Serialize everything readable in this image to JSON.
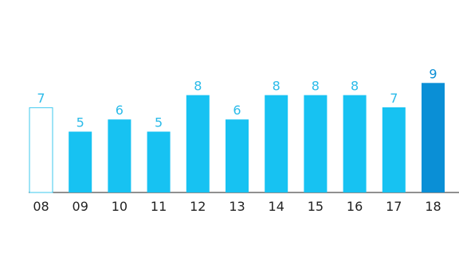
{
  "chart_data": {
    "type": "bar",
    "categories": [
      "08",
      "09",
      "10",
      "11",
      "12",
      "13",
      "14",
      "15",
      "16",
      "17",
      "18"
    ],
    "values": [
      7,
      5,
      6,
      5,
      8,
      6,
      8,
      8,
      8,
      7,
      9
    ],
    "value_labels": [
      "7",
      "5",
      "6",
      "5",
      "8",
      "6",
      "8",
      "8",
      "8",
      "7",
      "9"
    ],
    "bar_styles": [
      "outline",
      "fill",
      "fill",
      "fill",
      "fill",
      "fill",
      "fill",
      "fill",
      "fill",
      "fill",
      "highlight"
    ],
    "title": "",
    "xlabel": "",
    "ylabel": "",
    "grid": false,
    "colors": {
      "bar": "#17c2f2",
      "highlight": "#0a8fd6",
      "outline": "#3ec8ee",
      "label": "#2bbbe9",
      "highlight_label": "#0a8fd6",
      "axis": "#222222"
    }
  }
}
